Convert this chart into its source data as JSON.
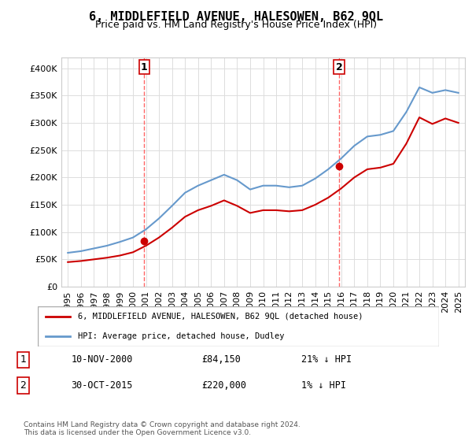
{
  "title": "6, MIDDLEFIELD AVENUE, HALESOWEN, B62 9QL",
  "subtitle": "Price paid vs. HM Land Registry's House Price Index (HPI)",
  "legend_line1": "6, MIDDLEFIELD AVENUE, HALESOWEN, B62 9QL (detached house)",
  "legend_line2": "HPI: Average price, detached house, Dudley",
  "transaction1_label": "1",
  "transaction1_date": "10-NOV-2000",
  "transaction1_price": "£84,150",
  "transaction1_hpi": "21% ↓ HPI",
  "transaction1_year": 2000.87,
  "transaction1_value": 84150,
  "transaction2_label": "2",
  "transaction2_date": "30-OCT-2015",
  "transaction2_price": "£220,000",
  "transaction2_hpi": "1% ↓ HPI",
  "transaction2_year": 2015.83,
  "transaction2_value": 220000,
  "footer": "Contains HM Land Registry data © Crown copyright and database right 2024.\nThis data is licensed under the Open Government Licence v3.0.",
  "hpi_color": "#6699cc",
  "price_color": "#cc0000",
  "marker_color": "#cc0000",
  "vline_color": "#ff6666",
  "ylim": [
    0,
    420000
  ],
  "yticks": [
    0,
    50000,
    100000,
    150000,
    200000,
    250000,
    300000,
    350000,
    400000
  ],
  "hpi_data": {
    "years": [
      1995,
      1996,
      1997,
      1998,
      1999,
      2000,
      2001,
      2002,
      2003,
      2004,
      2005,
      2006,
      2007,
      2008,
      2009,
      2010,
      2011,
      2012,
      2013,
      2014,
      2015,
      2016,
      2017,
      2018,
      2019,
      2020,
      2021,
      2022,
      2023,
      2024,
      2025
    ],
    "values": [
      62000,
      65000,
      70000,
      75000,
      82000,
      90000,
      105000,
      125000,
      148000,
      172000,
      185000,
      195000,
      205000,
      195000,
      178000,
      185000,
      185000,
      182000,
      185000,
      198000,
      215000,
      235000,
      258000,
      275000,
      278000,
      285000,
      320000,
      365000,
      355000,
      360000,
      355000
    ]
  },
  "price_data": {
    "years": [
      1995,
      1996,
      1997,
      1998,
      1999,
      2000,
      2001,
      2002,
      2003,
      2004,
      2005,
      2006,
      2007,
      2008,
      2009,
      2010,
      2011,
      2012,
      2013,
      2014,
      2015,
      2016,
      2017,
      2018,
      2019,
      2020,
      2021,
      2022,
      2023,
      2024,
      2025
    ],
    "values": [
      45000,
      47000,
      50000,
      53000,
      57000,
      63000,
      75000,
      90000,
      108000,
      128000,
      140000,
      148000,
      158000,
      148000,
      135000,
      140000,
      140000,
      138000,
      140000,
      150000,
      163000,
      180000,
      200000,
      215000,
      218000,
      225000,
      262000,
      310000,
      298000,
      308000,
      300000
    ]
  }
}
